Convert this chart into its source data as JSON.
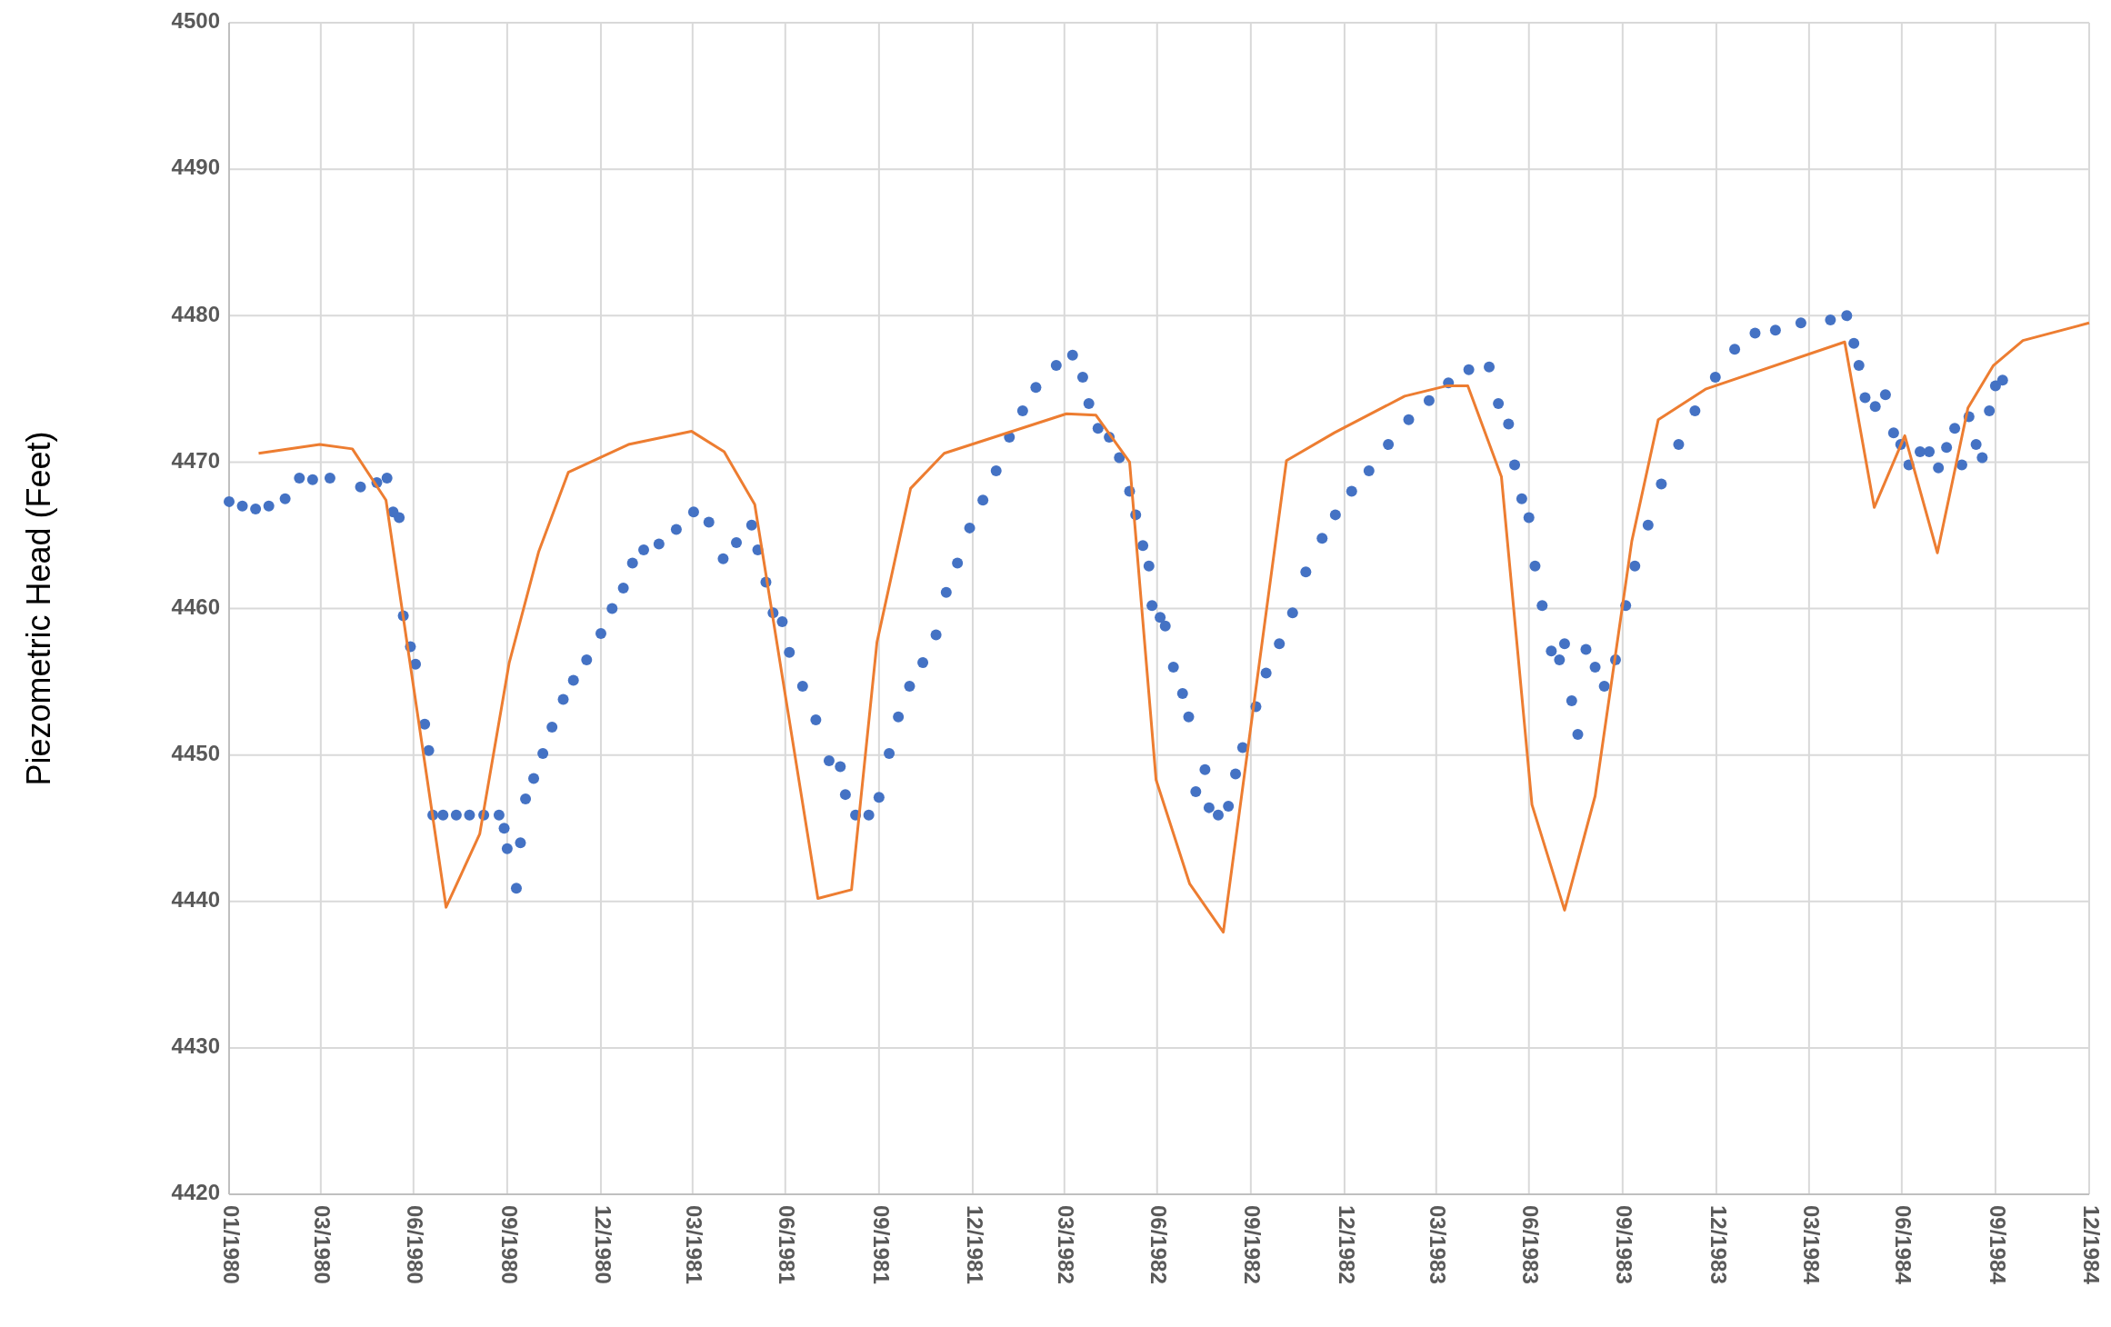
{
  "chart_data": {
    "type": "scatter",
    "ylabel": "Piezometric Head (Feet)",
    "xlim": [
      "1980-01-01",
      "1984-12-31"
    ],
    "ylim": [
      4420,
      4500
    ],
    "xticks": [
      {
        "value": "1980-01-01",
        "label": "01/1980"
      },
      {
        "value": "1980-03-31",
        "label": "03/1980"
      },
      {
        "value": "1980-06-30",
        "label": "06/1980"
      },
      {
        "value": "1980-09-30",
        "label": "09/1980"
      },
      {
        "value": "1980-12-31",
        "label": "12/1980"
      },
      {
        "value": "1981-03-31",
        "label": "03/1981"
      },
      {
        "value": "1981-06-30",
        "label": "06/1981"
      },
      {
        "value": "1981-09-30",
        "label": "09/1981"
      },
      {
        "value": "1981-12-31",
        "label": "12/1981"
      },
      {
        "value": "1982-03-31",
        "label": "03/1982"
      },
      {
        "value": "1982-06-30",
        "label": "06/1982"
      },
      {
        "value": "1982-09-30",
        "label": "09/1982"
      },
      {
        "value": "1982-12-31",
        "label": "12/1982"
      },
      {
        "value": "1983-03-31",
        "label": "03/1983"
      },
      {
        "value": "1983-06-30",
        "label": "06/1983"
      },
      {
        "value": "1983-09-30",
        "label": "09/1983"
      },
      {
        "value": "1983-12-31",
        "label": "12/1983"
      },
      {
        "value": "1984-03-31",
        "label": "03/1984"
      },
      {
        "value": "1984-06-30",
        "label": "06/1984"
      },
      {
        "value": "1984-09-30",
        "label": "09/1984"
      },
      {
        "value": "1984-12-31",
        "label": "12/1984"
      }
    ],
    "yticks": [
      4420,
      4430,
      4440,
      4450,
      4460,
      4470,
      4480,
      4490,
      4500
    ],
    "grid": true,
    "series": [
      {
        "marker": "circle",
        "color": "#4472c4",
        "x": [
          "1980-01-01",
          "1980-01-14",
          "1980-01-27",
          "1980-02-09",
          "1980-02-25",
          "1980-03-10",
          "1980-03-23",
          "1980-04-09",
          "1980-05-09",
          "1980-05-25",
          "1980-06-04",
          "1980-06-10",
          "1980-06-16",
          "1980-06-20",
          "1980-06-27",
          "1980-07-02",
          "1980-07-11",
          "1980-07-15",
          "1980-07-19",
          "1980-07-29",
          "1980-08-11",
          "1980-08-24",
          "1980-09-07",
          "1980-09-22",
          "1980-09-27",
          "1980-09-30",
          "1980-10-09",
          "1980-10-13",
          "1980-10-18",
          "1980-10-26",
          "1980-11-04",
          "1980-11-13",
          "1980-11-24",
          "1980-12-04",
          "1980-12-17",
          "1980-12-31",
          "1981-01-11",
          "1981-01-22",
          "1981-01-31",
          "1981-02-11",
          "1981-02-26",
          "1981-03-15",
          "1981-04-01",
          "1981-04-16",
          "1981-04-30",
          "1981-05-13",
          "1981-05-28",
          "1981-06-03",
          "1981-06-11",
          "1981-06-18",
          "1981-06-27",
          "1981-07-04",
          "1981-07-17",
          "1981-07-30",
          "1981-08-12",
          "1981-08-23",
          "1981-08-28",
          "1981-09-07",
          "1981-09-20",
          "1981-09-30",
          "1981-10-10",
          "1981-10-19",
          "1981-10-30",
          "1981-11-12",
          "1981-11-25",
          "1981-12-05",
          "1981-12-16",
          "1981-12-28",
          "1982-01-10",
          "1982-01-23",
          "1982-02-05",
          "1982-02-18",
          "1982-03-03",
          "1982-03-23",
          "1982-04-08",
          "1982-04-18",
          "1982-04-24",
          "1982-05-03",
          "1982-05-14",
          "1982-05-24",
          "1982-06-03",
          "1982-06-09",
          "1982-06-16",
          "1982-06-22",
          "1982-06-25",
          "1982-07-03",
          "1982-07-08",
          "1982-07-16",
          "1982-07-25",
          "1982-07-31",
          "1982-08-07",
          "1982-08-16",
          "1982-08-20",
          "1982-08-29",
          "1982-09-08",
          "1982-09-15",
          "1982-09-22",
          "1982-10-05",
          "1982-10-15",
          "1982-10-28",
          "1982-11-10",
          "1982-11-23",
          "1982-12-09",
          "1982-12-22",
          "1983-01-07",
          "1983-01-24",
          "1983-02-12",
          "1983-03-04",
          "1983-03-24",
          "1983-04-12",
          "1983-05-02",
          "1983-05-22",
          "1983-05-31",
          "1983-06-10",
          "1983-06-16",
          "1983-06-23",
          "1983-06-30",
          "1983-07-06",
          "1983-07-13",
          "1983-07-22",
          "1983-07-30",
          "1983-08-04",
          "1983-08-11",
          "1983-08-17",
          "1983-08-25",
          "1983-09-03",
          "1983-09-12",
          "1983-09-23",
          "1983-10-03",
          "1983-10-12",
          "1983-10-25",
          "1983-11-07",
          "1983-11-24",
          "1983-12-10",
          "1983-12-30",
          "1984-01-18",
          "1984-02-07",
          "1984-02-27",
          "1984-03-23",
          "1984-04-21",
          "1984-05-07",
          "1984-05-14",
          "1984-05-19",
          "1984-05-25",
          "1984-06-04",
          "1984-06-14",
          "1984-06-22",
          "1984-06-29",
          "1984-07-07",
          "1984-07-18",
          "1984-07-27",
          "1984-08-05",
          "1984-08-13",
          "1984-08-21",
          "1984-08-28",
          "1984-09-04",
          "1984-09-11",
          "1984-09-17",
          "1984-09-24",
          "1984-09-30",
          "1984-10-07"
        ],
        "values": [
          4467.3,
          4467.0,
          4466.8,
          4467.0,
          4467.5,
          4468.9,
          4468.8,
          4468.9,
          4468.3,
          4468.6,
          4468.9,
          4466.6,
          4466.2,
          4459.5,
          4457.4,
          4456.2,
          4452.1,
          4450.3,
          4445.9,
          4445.9,
          4445.9,
          4445.9,
          4445.9,
          4445.9,
          4445.0,
          4443.6,
          4440.9,
          4444.0,
          4447.0,
          4448.4,
          4450.1,
          4451.9,
          4453.8,
          4455.1,
          4456.5,
          4458.3,
          4460.0,
          4461.4,
          4463.1,
          4464.0,
          4464.4,
          4465.4,
          4466.6,
          4465.9,
          4463.4,
          4464.5,
          4465.7,
          4464.0,
          4461.8,
          4459.7,
          4459.1,
          4457.0,
          4454.7,
          4452.4,
          4449.6,
          4449.2,
          4447.3,
          4445.9,
          4445.9,
          4447.1,
          4450.1,
          4452.6,
          4454.7,
          4456.3,
          4458.2,
          4461.1,
          4463.1,
          4465.5,
          4467.4,
          4469.4,
          4471.7,
          4473.5,
          4475.1,
          4476.6,
          4477.3,
          4475.8,
          4474.0,
          4472.3,
          4471.7,
          4470.3,
          4468.0,
          4466.4,
          4464.3,
          4462.9,
          4460.2,
          4459.4,
          4458.8,
          4456.0,
          4454.2,
          4452.6,
          4447.5,
          4449.0,
          4446.4,
          4445.9,
          4446.5,
          4448.7,
          4450.5,
          4453.3,
          4455.6,
          4457.6,
          4459.7,
          4462.5,
          4464.8,
          4466.4,
          4468.0,
          4469.4,
          4471.2,
          4472.9,
          4474.2,
          4475.4,
          4476.3,
          4476.5,
          4474.0,
          4472.6,
          4469.8,
          4467.5,
          4466.2,
          4462.9,
          4460.2,
          4457.1,
          4456.5,
          4457.6,
          4453.7,
          4451.4,
          4457.2,
          4456.0,
          4454.7,
          4456.5,
          4460.2,
          4462.9,
          4465.7,
          4468.5,
          4471.2,
          4473.5,
          4475.8,
          4477.7,
          4478.8,
          4479.0,
          4479.5,
          4479.7,
          4480.0,
          4478.1,
          4476.6,
          4474.4,
          4473.8,
          4474.6,
          4472.0,
          4471.2,
          4469.8,
          4470.7,
          4470.7,
          4469.6,
          4471.0,
          4472.3,
          4469.8,
          4473.1,
          4471.2,
          4470.3,
          4473.5,
          4475.2,
          4475.6
        ]
      },
      {
        "type": "line",
        "color": "#ed7d31",
        "x": [
          "1980-01-30",
          "1980-03-30",
          "1980-05-01",
          "1980-06-03",
          "1980-08-01",
          "1980-09-03",
          "1980-10-02",
          "1980-10-31",
          "1980-11-29",
          "1981-01-27",
          "1981-03-30",
          "1981-05-01",
          "1981-05-31",
          "1981-08-01",
          "1981-09-03",
          "1981-09-28",
          "1981-10-31",
          "1981-12-03",
          "1982-04-02",
          "1982-05-01",
          "1982-06-03",
          "1982-06-29",
          "1982-08-01",
          "1982-09-03",
          "1982-11-04",
          "1982-12-21",
          "1983-02-28",
          "1983-04-10",
          "1983-05-01",
          "1983-06-03",
          "1983-07-03",
          "1983-08-04",
          "1983-09-03",
          "1983-10-09",
          "1983-11-04",
          "1983-12-21",
          "1984-05-05",
          "1984-06-03",
          "1984-07-03",
          "1984-08-04",
          "1984-09-03",
          "1984-09-28",
          "1984-10-27",
          "1984-12-31"
        ],
        "values": [
          4470.6,
          4471.2,
          4470.9,
          4467.4,
          4439.6,
          4444.6,
          4456.3,
          4463.9,
          4469.3,
          4471.2,
          4472.1,
          4470.7,
          4467.1,
          4440.2,
          4440.8,
          4457.7,
          4468.2,
          4470.6,
          4473.3,
          4473.2,
          4470.0,
          4448.3,
          4441.2,
          4437.9,
          4470.1,
          4472.0,
          4474.5,
          4475.2,
          4475.2,
          4469.0,
          4446.6,
          4439.4,
          4447.2,
          4464.6,
          4472.9,
          4475.0,
          4478.2,
          4466.9,
          4471.8,
          4463.8,
          4473.7,
          4476.6,
          4478.3,
          4479.5
        ]
      }
    ]
  }
}
